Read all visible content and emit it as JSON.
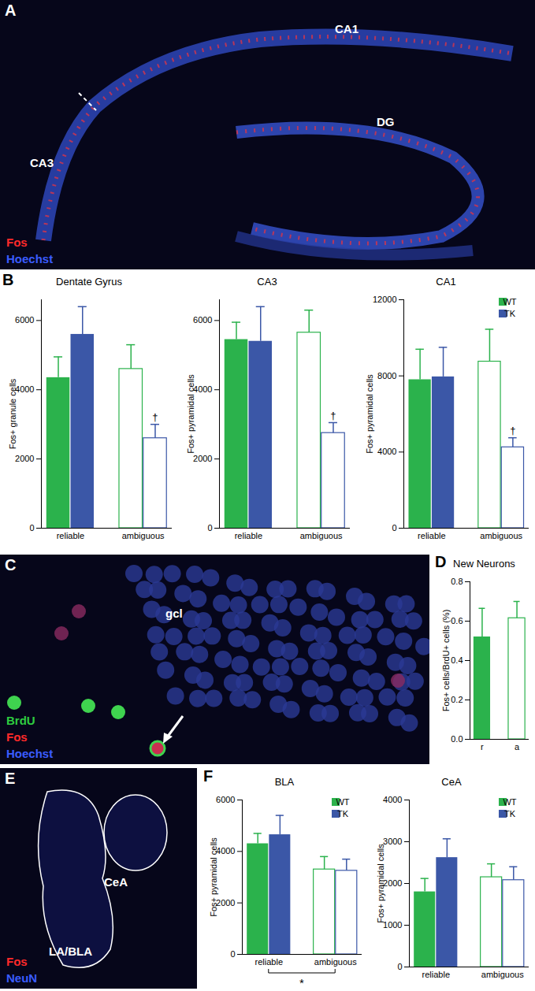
{
  "chart_data": [
    {
      "type": "bar",
      "title": "Dentate Gyrus",
      "ylabel": "Fos+ granule cells",
      "categories": [
        "reliable",
        "ambiguous"
      ],
      "series": [
        {
          "name": "WT",
          "color": "#2bb24c",
          "values": [
            4350,
            4600
          ],
          "errors": [
            600,
            700
          ]
        },
        {
          "name": "TK",
          "color": "#3b57a7",
          "values": [
            5600,
            2600
          ],
          "errors": [
            800,
            400
          ],
          "annotations": [
            null,
            "†"
          ]
        }
      ],
      "ylim": [
        0,
        6600
      ],
      "yticks": [
        0,
        2000,
        4000,
        6000
      ]
    },
    {
      "type": "bar",
      "title": "CA3",
      "ylabel": "Fos+ pyramidal cells",
      "categories": [
        "reliable",
        "ambiguous"
      ],
      "series": [
        {
          "name": "WT",
          "color": "#2bb24c",
          "values": [
            5450,
            5650
          ],
          "errors": [
            500,
            650
          ]
        },
        {
          "name": "TK",
          "color": "#3b57a7",
          "values": [
            5400,
            2750
          ],
          "errors": [
            1000,
            300
          ],
          "annotations": [
            null,
            "†"
          ]
        }
      ],
      "ylim": [
        0,
        6600
      ],
      "yticks": [
        0,
        2000,
        4000,
        6000
      ]
    },
    {
      "type": "bar",
      "title": "CA1",
      "ylabel": "Fos+ pyramidal cells",
      "categories": [
        "reliable",
        "ambiguous"
      ],
      "series": [
        {
          "name": "WT",
          "color": "#2bb24c",
          "values": [
            7800,
            8750
          ],
          "errors": [
            1600,
            1700
          ]
        },
        {
          "name": "TK",
          "color": "#3b57a7",
          "values": [
            7950,
            4250
          ],
          "errors": [
            1550,
            500
          ],
          "annotations": [
            null,
            "†"
          ]
        }
      ],
      "ylim": [
        0,
        12000
      ],
      "yticks": [
        0,
        4000,
        8000,
        12000
      ],
      "legend": "top-right"
    },
    {
      "type": "bar",
      "title": "New Neurons",
      "ylabel": "Fos+ cells/BrdU+ cells (%)",
      "categories": [
        "r",
        "a"
      ],
      "series": [
        {
          "color": "#2bb24c",
          "values": [
            0.52,
            0.615
          ],
          "errors": [
            0.145,
            0.085
          ]
        }
      ],
      "ylim": [
        0,
        0.8
      ],
      "yticks": [
        {
          "value": 0,
          "label": "0.0"
        },
        {
          "value": 0.2,
          "label": "0.2"
        },
        {
          "value": 0.4,
          "label": "0.4"
        },
        {
          "value": 0.6,
          "label": "0.6"
        },
        {
          "value": 0.8,
          "label": "0.8"
        }
      ]
    },
    {
      "type": "bar",
      "title": "BLA",
      "ylabel": "Fos+ pyramidal cells",
      "categories": [
        "reliable",
        "ambiguous"
      ],
      "series": [
        {
          "name": "WT",
          "color": "#2bb24c",
          "values": [
            4300,
            3300
          ],
          "errors": [
            400,
            500
          ]
        },
        {
          "name": "TK",
          "color": "#3b57a7",
          "values": [
            4650,
            3250
          ],
          "errors": [
            750,
            450
          ]
        }
      ],
      "ylim": [
        0,
        6000
      ],
      "yticks": [
        0,
        2000,
        4000,
        6000
      ],
      "legend": "top-right",
      "annotations": [
        {
          "text": "*",
          "categories": [
            "reliable",
            "ambiguous"
          ]
        }
      ]
    },
    {
      "type": "bar",
      "title": "CeA",
      "ylabel": "Fos+ pyramidal cells",
      "categories": [
        "reliable",
        "ambiguous"
      ],
      "series": [
        {
          "name": "WT",
          "color": "#2bb24c",
          "values": [
            1800,
            2150
          ],
          "errors": [
            320,
            320
          ]
        },
        {
          "name": "TK",
          "color": "#3b57a7",
          "values": [
            2620,
            2080
          ],
          "errors": [
            450,
            320
          ]
        }
      ],
      "ylim": [
        0,
        4000
      ],
      "yticks": [
        0,
        1000,
        2000,
        3000,
        4000
      ],
      "legend": "top-right"
    }
  ],
  "figure": {
    "panel_labels": [
      "A",
      "B",
      "C",
      "D",
      "E",
      "F"
    ],
    "images": [
      {
        "region_labels": [
          "CA1",
          "CA3",
          "DG"
        ],
        "stains": [
          {
            "text": "Fos",
            "color": "#ff2a2a"
          },
          {
            "text": "Hoechst",
            "color": "#3a5cff"
          }
        ]
      },
      {
        "region_labels": [
          "gcl"
        ],
        "stains": [
          {
            "text": "BrdU",
            "color": "#2ecc40"
          },
          {
            "text": "Fos",
            "color": "#ff2a2a"
          },
          {
            "text": "Hoechst",
            "color": "#3a5cff"
          }
        ]
      },
      {
        "region_labels": [
          "CeA",
          "LA/BLA"
        ],
        "stains": [
          {
            "text": "Fos",
            "color": "#ff2a2a"
          },
          {
            "text": "NeuN",
            "color": "#3a5cff"
          }
        ]
      }
    ]
  }
}
